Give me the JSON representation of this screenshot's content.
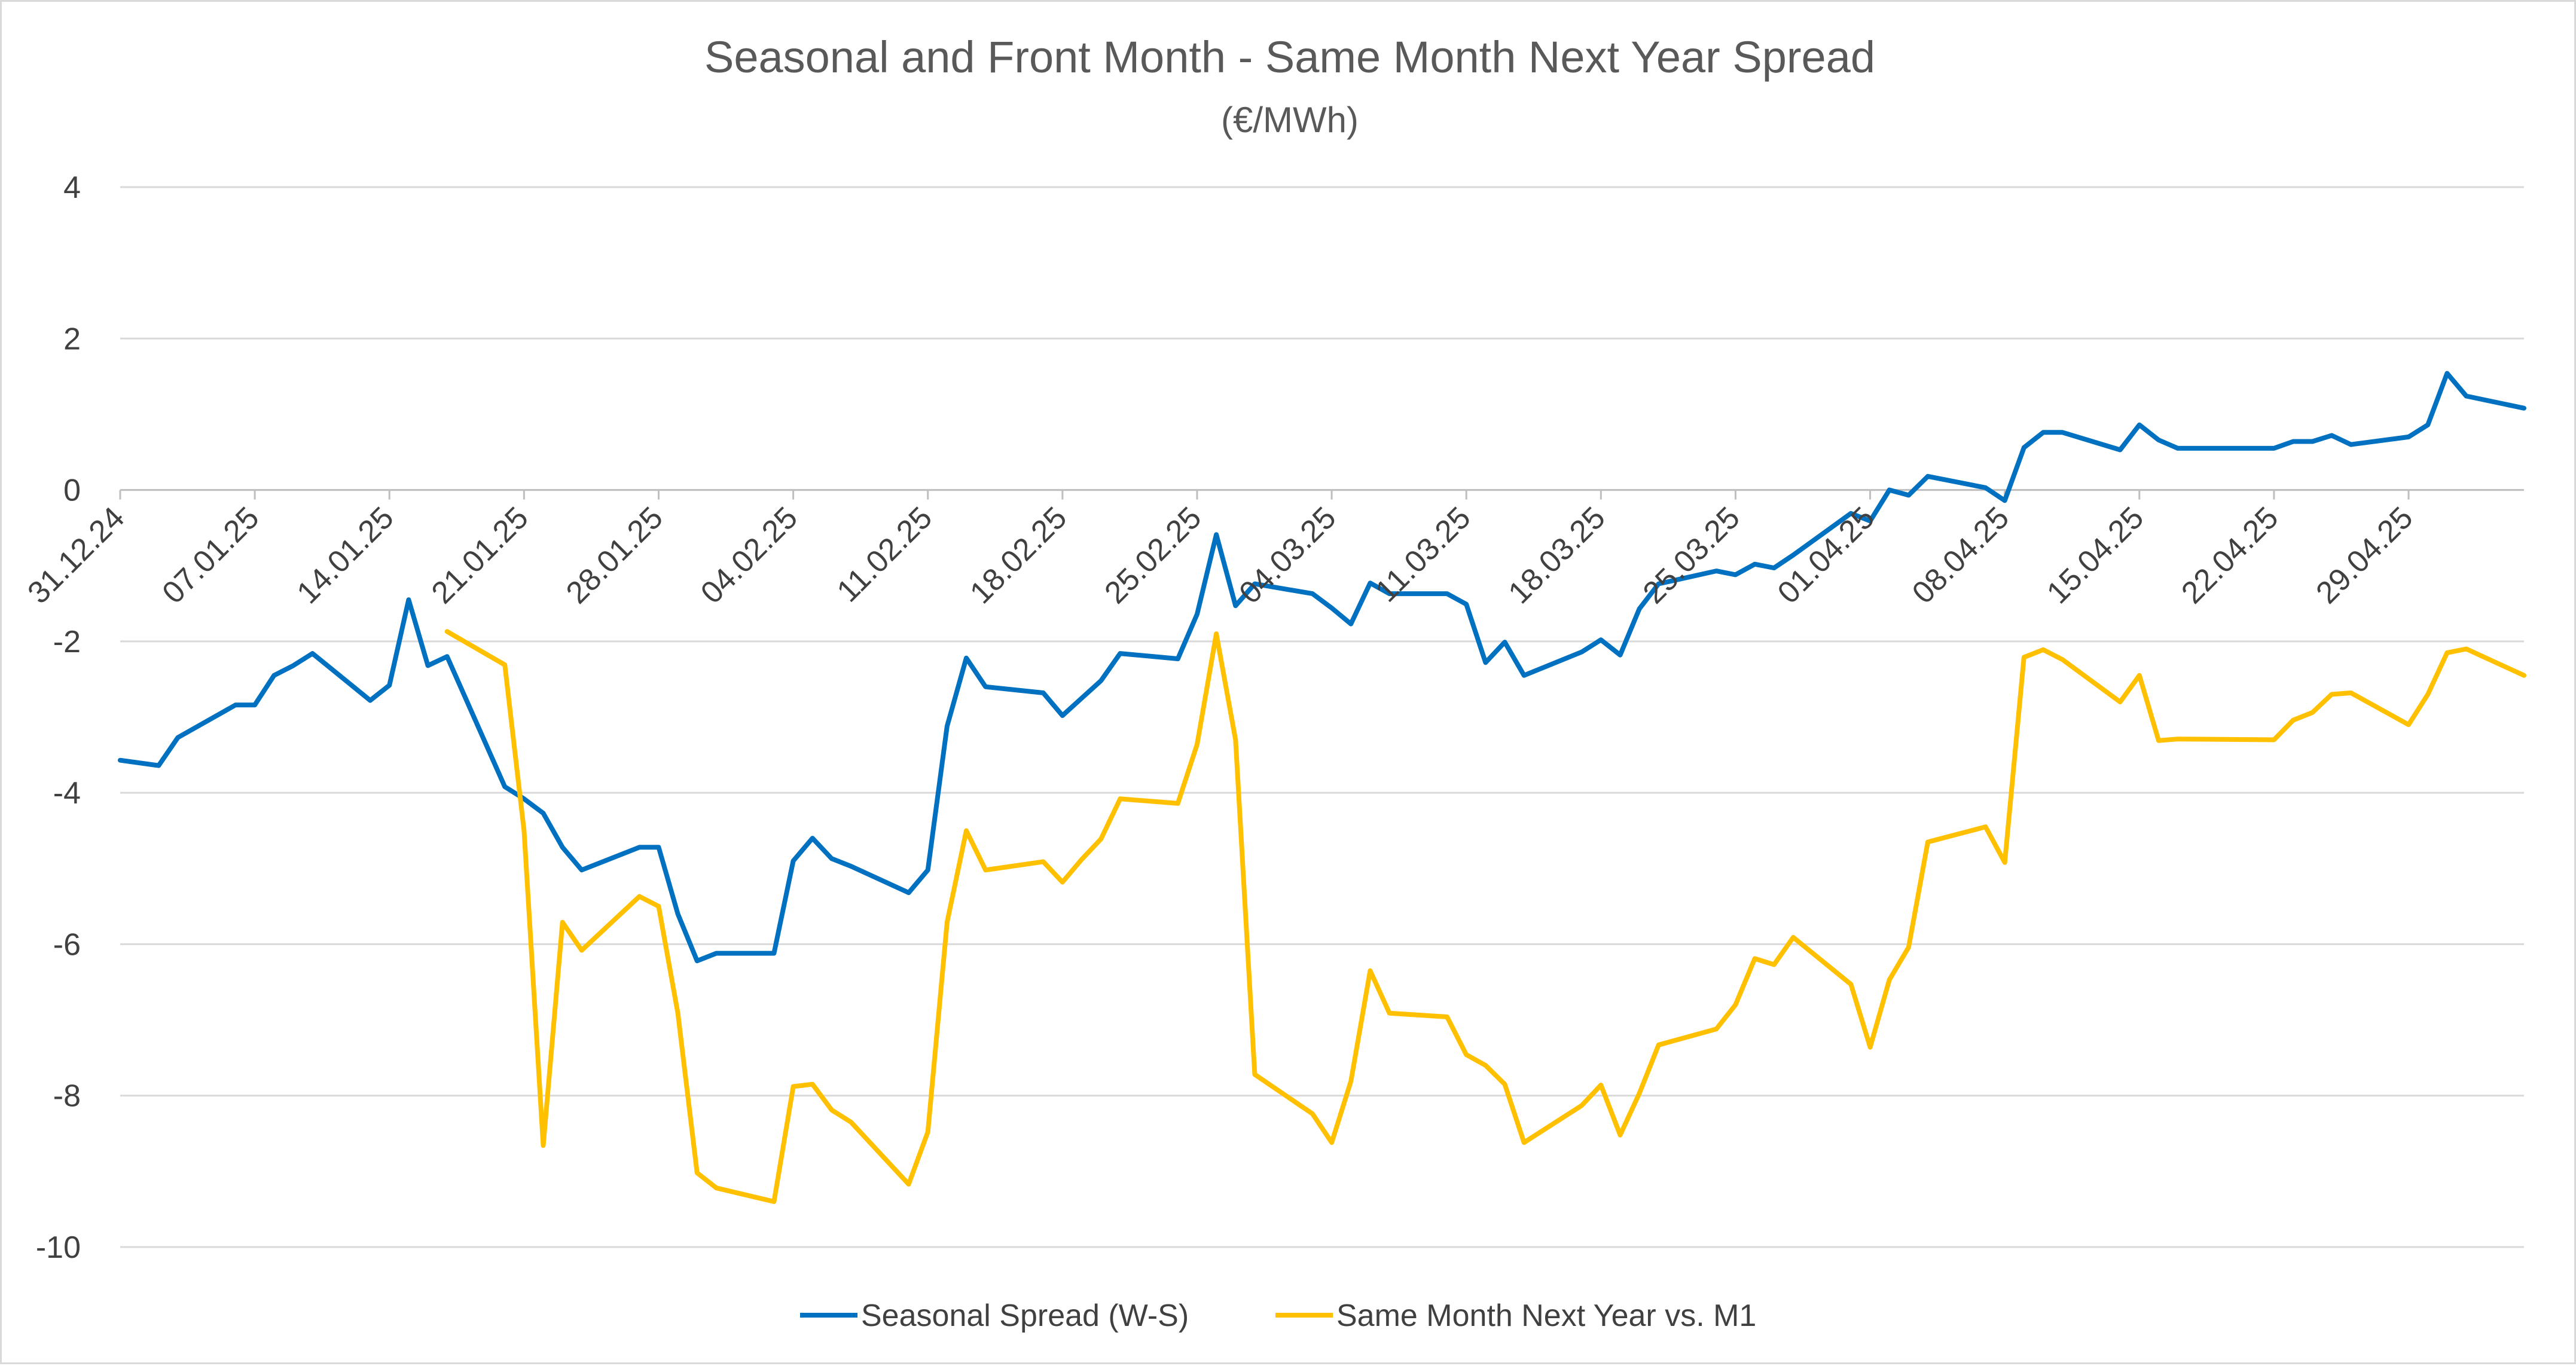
{
  "chart_data": {
    "type": "line",
    "title": "Seasonal and Front Month - Same Month Next Year Spread",
    "subtitle": "(€/MWh)",
    "xlabel": "",
    "ylabel": "",
    "ylim": [
      -10,
      4
    ],
    "yticks": [
      4,
      2,
      0,
      -2,
      -4,
      -6,
      -8,
      -10
    ],
    "xlim": [
      "2024-12-31",
      "2025-05-05"
    ],
    "xtick_labels": [
      "31.12.24",
      "07.01.25",
      "14.01.25",
      "21.01.25",
      "28.01.25",
      "04.02.25",
      "11.02.25",
      "18.02.25",
      "25.02.25",
      "04.03.25",
      "11.03.25",
      "18.03.25",
      "25.03.25",
      "01.04.25",
      "08.04.25",
      "15.04.25",
      "22.04.25",
      "29.04.25"
    ],
    "grid": "horizontal",
    "legend": "bottom",
    "series": [
      {
        "name": "Seasonal Spread (W-S)",
        "color": "#0070c0",
        "points": [
          [
            "2024-12-31",
            -3.57
          ],
          [
            "2025-01-02",
            -3.64
          ],
          [
            "2025-01-03",
            -3.27
          ],
          [
            "2025-01-06",
            -2.84
          ],
          [
            "2025-01-07",
            -2.84
          ],
          [
            "2025-01-08",
            -2.45
          ],
          [
            "2025-01-09",
            -2.32
          ],
          [
            "2025-01-10",
            -2.16
          ],
          [
            "2025-01-13",
            -2.78
          ],
          [
            "2025-01-14",
            -2.58
          ],
          [
            "2025-01-15",
            -1.45
          ],
          [
            "2025-01-16",
            -2.32
          ],
          [
            "2025-01-17",
            -2.2
          ],
          [
            "2025-01-20",
            -3.92
          ],
          [
            "2025-01-21",
            -4.08
          ],
          [
            "2025-01-22",
            -4.27
          ],
          [
            "2025-01-23",
            -4.72
          ],
          [
            "2025-01-24",
            -5.02
          ],
          [
            "2025-01-27",
            -4.72
          ],
          [
            "2025-01-28",
            -4.72
          ],
          [
            "2025-01-29",
            -5.6
          ],
          [
            "2025-01-30",
            -6.22
          ],
          [
            "2025-01-31",
            -6.12
          ],
          [
            "2025-02-03",
            -6.12
          ],
          [
            "2025-02-04",
            -4.9
          ],
          [
            "2025-02-05",
            -4.6
          ],
          [
            "2025-02-06",
            -4.87
          ],
          [
            "2025-02-07",
            -4.97
          ],
          [
            "2025-02-10",
            -5.32
          ],
          [
            "2025-02-11",
            -5.02
          ],
          [
            "2025-02-12",
            -3.12
          ],
          [
            "2025-02-13",
            -2.22
          ],
          [
            "2025-02-14",
            -2.6
          ],
          [
            "2025-02-17",
            -2.68
          ],
          [
            "2025-02-18",
            -2.98
          ],
          [
            "2025-02-19",
            -2.75
          ],
          [
            "2025-02-20",
            -2.52
          ],
          [
            "2025-02-21",
            -2.16
          ],
          [
            "2025-02-24",
            -2.23
          ],
          [
            "2025-02-25",
            -1.64
          ],
          [
            "2025-02-26",
            -0.59
          ],
          [
            "2025-02-27",
            -1.53
          ],
          [
            "2025-02-28",
            -1.24
          ],
          [
            "2025-03-03",
            -1.37
          ],
          [
            "2025-03-04",
            -1.56
          ],
          [
            "2025-03-05",
            -1.77
          ],
          [
            "2025-03-06",
            -1.23
          ],
          [
            "2025-03-07",
            -1.37
          ],
          [
            "2025-03-10",
            -1.37
          ],
          [
            "2025-03-11",
            -1.51
          ],
          [
            "2025-03-12",
            -2.28
          ],
          [
            "2025-03-13",
            -2.01
          ],
          [
            "2025-03-14",
            -2.45
          ],
          [
            "2025-03-17",
            -2.14
          ],
          [
            "2025-03-18",
            -1.98
          ],
          [
            "2025-03-19",
            -2.18
          ],
          [
            "2025-03-20",
            -1.57
          ],
          [
            "2025-03-21",
            -1.24
          ],
          [
            "2025-03-24",
            -1.07
          ],
          [
            "2025-03-25",
            -1.12
          ],
          [
            "2025-03-26",
            -0.98
          ],
          [
            "2025-03-27",
            -1.03
          ],
          [
            "2025-03-28",
            -0.86
          ],
          [
            "2025-03-31",
            -0.31
          ],
          [
            "2025-04-01",
            -0.41
          ],
          [
            "2025-04-02",
            0.0
          ],
          [
            "2025-04-03",
            -0.07
          ],
          [
            "2025-04-04",
            0.18
          ],
          [
            "2025-04-07",
            0.03
          ],
          [
            "2025-04-08",
            -0.14
          ],
          [
            "2025-04-09",
            0.56
          ],
          [
            "2025-04-10",
            0.76
          ],
          [
            "2025-04-11",
            0.76
          ],
          [
            "2025-04-14",
            0.53
          ],
          [
            "2025-04-15",
            0.86
          ],
          [
            "2025-04-16",
            0.66
          ],
          [
            "2025-04-17",
            0.55
          ],
          [
            "2025-04-22",
            0.55
          ],
          [
            "2025-04-23",
            0.64
          ],
          [
            "2025-04-24",
            0.64
          ],
          [
            "2025-04-25",
            0.72
          ],
          [
            "2025-04-26",
            0.6
          ],
          [
            "2025-04-29",
            0.7
          ],
          [
            "2025-04-30",
            0.86
          ],
          [
            "2025-05-01",
            1.54
          ],
          [
            "2025-05-02",
            1.24
          ],
          [
            "2025-05-05",
            1.08
          ]
        ]
      },
      {
        "name": "Same Month Next Year vs. M1",
        "color": "#ffc000",
        "points": [
          [
            "2025-01-17",
            -1.87
          ],
          [
            "2025-01-20",
            -2.31
          ],
          [
            "2025-01-21",
            -4.5
          ],
          [
            "2025-01-22",
            -8.66
          ],
          [
            "2025-01-23",
            -5.71
          ],
          [
            "2025-01-24",
            -6.08
          ],
          [
            "2025-01-27",
            -5.37
          ],
          [
            "2025-01-28",
            -5.5
          ],
          [
            "2025-01-29",
            -6.91
          ],
          [
            "2025-01-30",
            -9.02
          ],
          [
            "2025-01-31",
            -9.22
          ],
          [
            "2025-02-03",
            -9.4
          ],
          [
            "2025-02-04",
            -7.88
          ],
          [
            "2025-02-05",
            -7.85
          ],
          [
            "2025-02-06",
            -8.19
          ],
          [
            "2025-02-07",
            -8.35
          ],
          [
            "2025-02-10",
            -9.17
          ],
          [
            "2025-02-11",
            -8.48
          ],
          [
            "2025-02-12",
            -5.71
          ],
          [
            "2025-02-13",
            -4.5
          ],
          [
            "2025-02-14",
            -5.02
          ],
          [
            "2025-02-17",
            -4.91
          ],
          [
            "2025-02-18",
            -5.18
          ],
          [
            "2025-02-19",
            -4.88
          ],
          [
            "2025-02-20",
            -4.61
          ],
          [
            "2025-02-21",
            -4.08
          ],
          [
            "2025-02-24",
            -4.14
          ],
          [
            "2025-02-25",
            -3.36
          ],
          [
            "2025-02-26",
            -1.9
          ],
          [
            "2025-02-27",
            -3.3
          ],
          [
            "2025-02-28",
            -7.72
          ],
          [
            "2025-03-03",
            -8.24
          ],
          [
            "2025-03-04",
            -8.62
          ],
          [
            "2025-03-05",
            -7.81
          ],
          [
            "2025-03-06",
            -6.35
          ],
          [
            "2025-03-07",
            -6.91
          ],
          [
            "2025-03-10",
            -6.96
          ],
          [
            "2025-03-11",
            -7.46
          ],
          [
            "2025-03-12",
            -7.6
          ],
          [
            "2025-03-13",
            -7.85
          ],
          [
            "2025-03-14",
            -8.62
          ],
          [
            "2025-03-17",
            -8.13
          ],
          [
            "2025-03-18",
            -7.86
          ],
          [
            "2025-03-19",
            -8.52
          ],
          [
            "2025-03-20",
            -7.97
          ],
          [
            "2025-03-21",
            -7.33
          ],
          [
            "2025-03-24",
            -7.12
          ],
          [
            "2025-03-25",
            -6.8
          ],
          [
            "2025-03-26",
            -6.19
          ],
          [
            "2025-03-27",
            -6.27
          ],
          [
            "2025-03-28",
            -5.91
          ],
          [
            "2025-03-31",
            -6.53
          ],
          [
            "2025-04-01",
            -7.36
          ],
          [
            "2025-04-02",
            -6.47
          ],
          [
            "2025-04-03",
            -6.04
          ],
          [
            "2025-04-04",
            -4.65
          ],
          [
            "2025-04-07",
            -4.45
          ],
          [
            "2025-04-08",
            -4.92
          ],
          [
            "2025-04-09",
            -2.21
          ],
          [
            "2025-04-10",
            -2.11
          ],
          [
            "2025-04-11",
            -2.24
          ],
          [
            "2025-04-14",
            -2.8
          ],
          [
            "2025-04-15",
            -2.45
          ],
          [
            "2025-04-16",
            -3.31
          ],
          [
            "2025-04-17",
            -3.29
          ],
          [
            "2025-04-22",
            -3.3
          ],
          [
            "2025-04-23",
            -3.04
          ],
          [
            "2025-04-24",
            -2.94
          ],
          [
            "2025-04-25",
            -2.7
          ],
          [
            "2025-04-26",
            -2.68
          ],
          [
            "2025-04-29",
            -3.1
          ],
          [
            "2025-04-30",
            -2.7
          ],
          [
            "2025-05-01",
            -2.15
          ],
          [
            "2025-05-02",
            -2.1
          ],
          [
            "2025-05-05",
            -2.45
          ]
        ]
      }
    ]
  }
}
